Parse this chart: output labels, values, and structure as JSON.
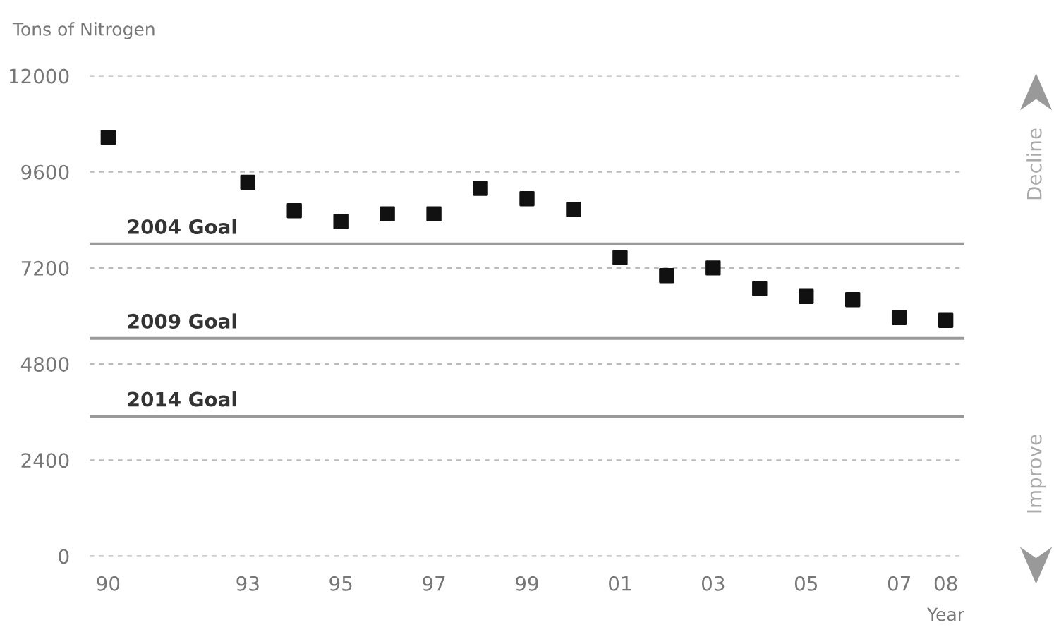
{
  "chart_data": {
    "type": "scatter",
    "ylabel": "Tons of Nitrogen",
    "xlabel": "Year",
    "x": [
      1990,
      1993,
      1994,
      1995,
      1996,
      1997,
      1998,
      1999,
      2000,
      2001,
      2002,
      2003,
      2004,
      2005,
      2006,
      2007,
      2008
    ],
    "series": [
      {
        "color": "#111111",
        "values": [
          10460,
          9340,
          8630,
          8360,
          8550,
          8550,
          9190,
          8930,
          8660,
          7460,
          7010,
          7200,
          6680,
          6490,
          6410,
          5960,
          5890
        ]
      }
    ],
    "marker": "square",
    "xlim": [
      1989.6,
      2008.4
    ],
    "xticks": [
      {
        "value": 1990,
        "label": "90"
      },
      {
        "value": 1993,
        "label": "93"
      },
      {
        "value": 1995,
        "label": "95"
      },
      {
        "value": 1997,
        "label": "97"
      },
      {
        "value": 1999,
        "label": "99"
      },
      {
        "value": 2001,
        "label": "01"
      },
      {
        "value": 2003,
        "label": "03"
      },
      {
        "value": 2005,
        "label": "05"
      },
      {
        "value": 2007,
        "label": "07"
      },
      {
        "value": 2008,
        "label": "08"
      }
    ],
    "ylim": [
      0,
      12000
    ],
    "yticks": [
      0,
      2400,
      4800,
      7200,
      9600,
      12000
    ],
    "grid": "y",
    "ref_lines": [
      {
        "axis": "y",
        "value": 7800,
        "label": "2004 Goal",
        "color": "#999999"
      },
      {
        "axis": "y",
        "value": 5440,
        "label": "2009 Goal",
        "color": "#999999"
      },
      {
        "axis": "y",
        "value": 3490,
        "label": "2014 Goal",
        "color": "#999999"
      }
    ],
    "annotations": [
      "Decline",
      "Improve"
    ]
  }
}
